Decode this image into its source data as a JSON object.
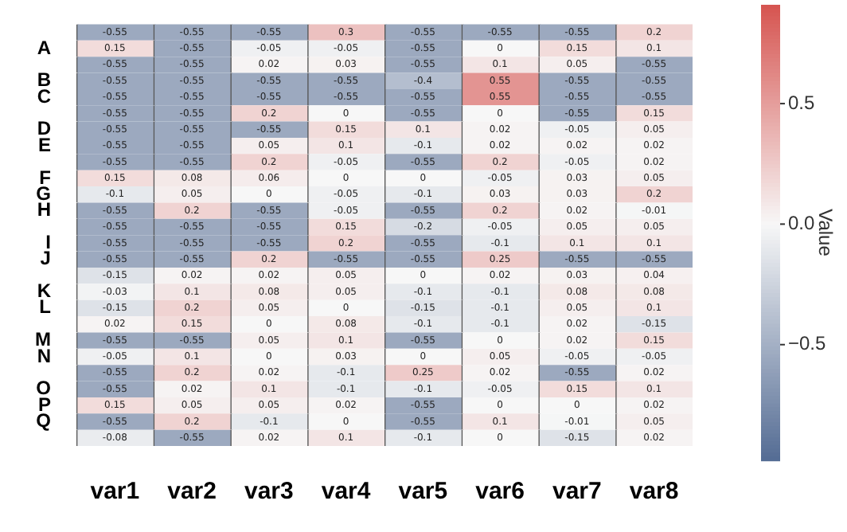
{
  "chart_data": {
    "type": "heatmap",
    "categories": [
      "var1",
      "var2",
      "var3",
      "var4",
      "var5",
      "var6",
      "var7",
      "var8"
    ],
    "y_categories": [
      null,
      "A",
      null,
      "B",
      "C",
      null,
      "D",
      "E",
      null,
      "F",
      "G",
      "H",
      null,
      "I",
      "J",
      null,
      "K",
      "L",
      null,
      "M",
      "N",
      null,
      "O",
      "P",
      "Q",
      null
    ],
    "cells": [
      [
        -0.55,
        -0.55,
        -0.55,
        0.3,
        -0.55,
        -0.55,
        -0.55,
        0.2
      ],
      [
        0.15,
        -0.55,
        -0.05,
        -0.05,
        -0.55,
        0,
        0.15,
        0.1
      ],
      [
        -0.55,
        -0.55,
        0.02,
        0.03,
        -0.55,
        0.1,
        0.05,
        -0.55
      ],
      [
        -0.55,
        -0.55,
        -0.55,
        -0.55,
        -0.4,
        0.55,
        -0.55,
        -0.55
      ],
      [
        -0.55,
        -0.55,
        -0.55,
        -0.55,
        -0.55,
        0.55,
        -0.55,
        -0.55
      ],
      [
        -0.55,
        -0.55,
        0.2,
        0,
        -0.55,
        0,
        -0.55,
        0.15
      ],
      [
        -0.55,
        -0.55,
        -0.55,
        0.15,
        0.1,
        0.02,
        -0.05,
        0.05
      ],
      [
        -0.55,
        -0.55,
        0.05,
        0.1,
        -0.1,
        0.02,
        0.02,
        0.02
      ],
      [
        -0.55,
        -0.55,
        0.2,
        -0.05,
        -0.55,
        0.2,
        -0.05,
        0.02
      ],
      [
        0.15,
        0.08,
        0.06,
        0,
        0,
        -0.05,
        0.03,
        0.05
      ],
      [
        -0.1,
        0.05,
        0,
        -0.05,
        -0.1,
        0.03,
        0.03,
        0.2
      ],
      [
        -0.55,
        0.2,
        -0.55,
        -0.05,
        -0.55,
        0.2,
        0.02,
        -0.01
      ],
      [
        -0.55,
        -0.55,
        -0.55,
        0.15,
        -0.2,
        -0.05,
        0.05,
        0.05
      ],
      [
        -0.55,
        -0.55,
        -0.55,
        0.2,
        -0.55,
        -0.1,
        0.1,
        0.1
      ],
      [
        -0.55,
        -0.55,
        0.2,
        -0.55,
        -0.55,
        0.25,
        -0.55,
        -0.55
      ],
      [
        -0.15,
        0.02,
        0.02,
        0.05,
        0,
        0.02,
        0.03,
        0.04
      ],
      [
        -0.03,
        0.1,
        0.08,
        0.05,
        -0.1,
        -0.1,
        0.08,
        0.08
      ],
      [
        -0.15,
        0.2,
        0.05,
        0,
        -0.15,
        -0.1,
        0.05,
        0.1
      ],
      [
        0.02,
        0.15,
        0,
        0.08,
        -0.1,
        -0.1,
        0.02,
        -0.15
      ],
      [
        -0.55,
        -0.55,
        0.05,
        0.1,
        -0.55,
        0,
        0.02,
        0.15
      ],
      [
        -0.05,
        0.1,
        0,
        0.03,
        0,
        0.05,
        -0.05,
        -0.05
      ],
      [
        -0.55,
        0.2,
        0.02,
        -0.1,
        0.25,
        0.02,
        -0.55,
        0.02
      ],
      [
        -0.55,
        0.02,
        0.1,
        -0.1,
        -0.1,
        -0.05,
        0.15,
        0.1
      ],
      [
        0.15,
        0.05,
        0.05,
        0.02,
        -0.55,
        0,
        0,
        0.02
      ],
      [
        -0.55,
        0.2,
        -0.1,
        0,
        -0.55,
        0.1,
        -0.01,
        0.05
      ],
      [
        -0.08,
        -0.55,
        0.02,
        0.1,
        -0.1,
        0,
        -0.15,
        0.02
      ]
    ],
    "data_labels": true,
    "clabel": "Value",
    "clim": [
      -0.98,
      0.91
    ],
    "cticks": [
      -0.5,
      {
        "value": 0,
        "label": "0.0"
      },
      0.5
    ]
  }
}
